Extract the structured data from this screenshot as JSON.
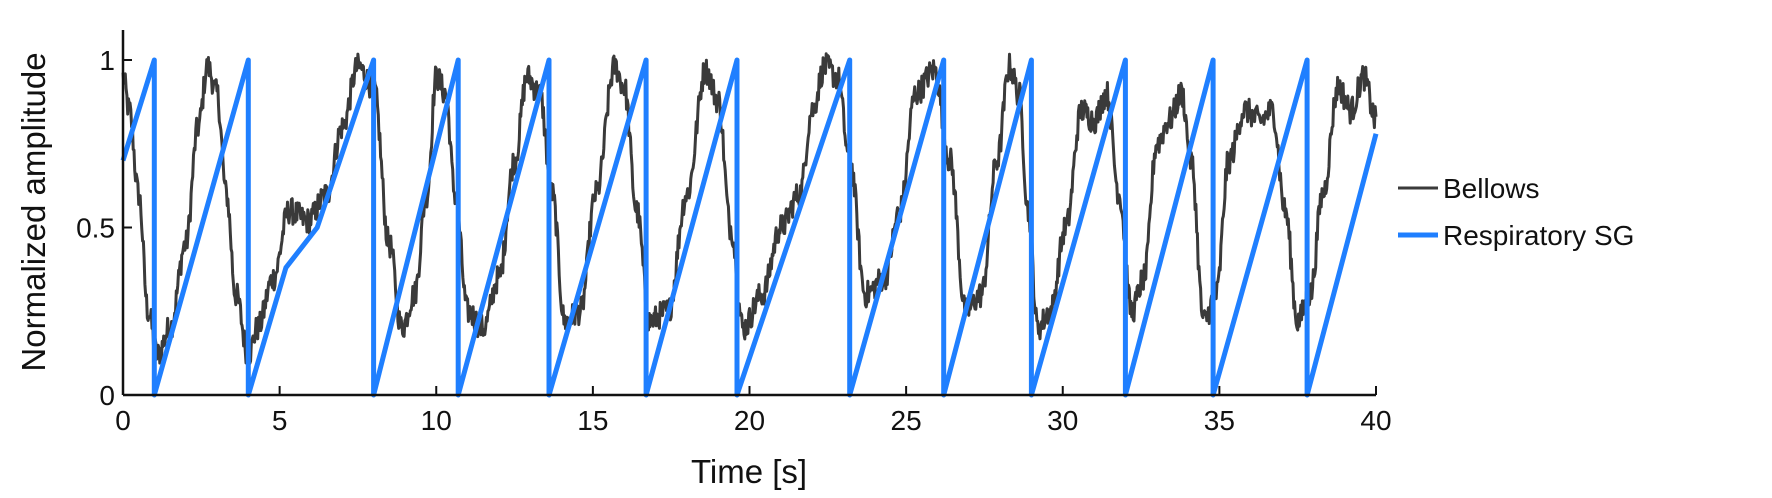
{
  "chart_data": {
    "type": "line",
    "title": "",
    "xlabel": "Time [s]",
    "ylabel": "Normalized amplitude",
    "xlim": [
      0,
      40
    ],
    "ylim": [
      0,
      1
    ],
    "x_ticks": [
      0,
      5,
      10,
      15,
      20,
      25,
      30,
      35,
      40
    ],
    "y_ticks": [
      0,
      0.5,
      1
    ],
    "y_tick_labels": [
      "0",
      "0.5",
      "1"
    ],
    "grid": false,
    "legend_position": "right",
    "series": [
      {
        "name": "Bellows",
        "color": "#3a3a3a",
        "noise": 0.04,
        "x": [
          0,
          0.2,
          0.5,
          0.8,
          1.1,
          1.5,
          2.0,
          2.4,
          2.7,
          3.0,
          3.3,
          3.6,
          4.0,
          4.3,
          4.8,
          5.3,
          5.9,
          6.5,
          7.0,
          7.5,
          8.0,
          8.5,
          8.9,
          9.3,
          9.7,
          10.0,
          10.3,
          10.6,
          11.0,
          11.5,
          12.0,
          12.5,
          12.9,
          13.3,
          13.7,
          14.1,
          14.6,
          15.1,
          15.7,
          16.0,
          16.4,
          16.8,
          17.4,
          18.0,
          18.6,
          19.0,
          19.4,
          19.8,
          20.4,
          21.0,
          21.6,
          22.0,
          22.4,
          22.8,
          23.2,
          23.7,
          24.3,
          24.8,
          25.3,
          25.9,
          26.4,
          26.9,
          27.4,
          27.9,
          28.3,
          28.6,
          28.9,
          29.2,
          29.6,
          30.1,
          30.6,
          31.0,
          31.4,
          31.8,
          32.2,
          32.6,
          33.0,
          33.4,
          33.8,
          34.1,
          34.5,
          34.9,
          35.3,
          35.8,
          36.3,
          36.7,
          37.1,
          37.5,
          37.9,
          38.3,
          38.8,
          39.2,
          39.6,
          40.0
        ],
        "y": [
          0.95,
          0.85,
          0.6,
          0.25,
          0.12,
          0.2,
          0.45,
          0.8,
          0.98,
          0.9,
          0.6,
          0.3,
          0.12,
          0.2,
          0.35,
          0.55,
          0.52,
          0.6,
          0.8,
          0.98,
          0.92,
          0.45,
          0.2,
          0.3,
          0.6,
          0.95,
          0.9,
          0.6,
          0.25,
          0.2,
          0.35,
          0.7,
          0.95,
          0.9,
          0.6,
          0.22,
          0.25,
          0.6,
          0.98,
          0.92,
          0.55,
          0.22,
          0.25,
          0.6,
          0.97,
          0.88,
          0.5,
          0.2,
          0.3,
          0.5,
          0.6,
          0.85,
          0.98,
          0.95,
          0.7,
          0.3,
          0.35,
          0.55,
          0.9,
          0.97,
          0.7,
          0.25,
          0.3,
          0.7,
          0.98,
          0.9,
          0.55,
          0.2,
          0.25,
          0.5,
          0.85,
          0.82,
          0.9,
          0.6,
          0.25,
          0.35,
          0.75,
          0.82,
          0.9,
          0.7,
          0.22,
          0.3,
          0.7,
          0.85,
          0.82,
          0.85,
          0.55,
          0.22,
          0.3,
          0.6,
          0.92,
          0.85,
          0.95,
          0.82
        ]
      },
      {
        "name": "Respiratory SG",
        "color": "#1f7fff",
        "noise": 0,
        "x": [
          0,
          1.0,
          1.0,
          4.0,
          4.0,
          5.2,
          6.2,
          8.0,
          8.0,
          10.7,
          10.7,
          13.6,
          13.6,
          16.7,
          16.7,
          19.6,
          19.6,
          23.2,
          23.2,
          26.2,
          26.2,
          29.0,
          29.0,
          32.0,
          32.0,
          34.8,
          34.8,
          37.8,
          37.8,
          40.0
        ],
        "y": [
          0.7,
          1.0,
          0.0,
          1.0,
          0.0,
          0.38,
          0.5,
          1.0,
          0.0,
          1.0,
          0.0,
          1.0,
          0.0,
          1.0,
          0.0,
          1.0,
          0.0,
          1.0,
          0.0,
          1.0,
          0.0,
          1.0,
          0.0,
          1.0,
          0.0,
          1.0,
          0.0,
          1.0,
          0.0,
          0.78
        ]
      }
    ]
  }
}
